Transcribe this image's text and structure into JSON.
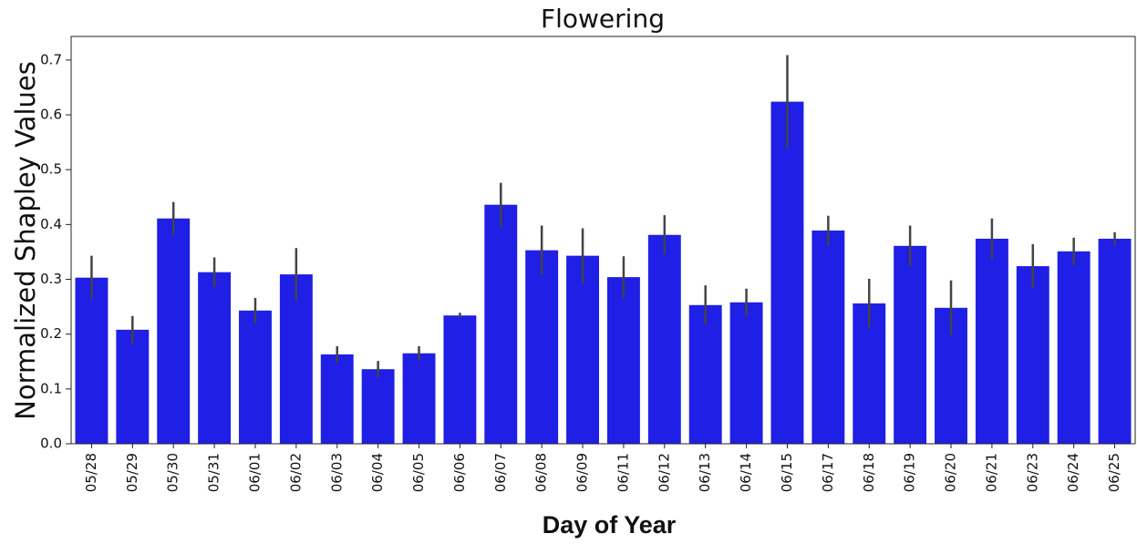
{
  "chart_data": {
    "type": "bar",
    "title": "Flowering",
    "xlabel": "Day of Year",
    "ylabel": "Normalized Shapley Values",
    "categories": [
      "05/28",
      "05/29",
      "05/30",
      "05/31",
      "06/01",
      "06/02",
      "06/03",
      "06/04",
      "06/05",
      "06/06",
      "06/07",
      "06/08",
      "06/09",
      "06/11",
      "06/12",
      "06/13",
      "06/14",
      "06/15",
      "06/17",
      "06/18",
      "06/19",
      "06/20",
      "06/21",
      "06/23",
      "06/24",
      "06/25"
    ],
    "values": [
      0.303,
      0.208,
      0.411,
      0.313,
      0.243,
      0.309,
      0.163,
      0.136,
      0.165,
      0.234,
      0.436,
      0.353,
      0.343,
      0.304,
      0.381,
      0.253,
      0.258,
      0.624,
      0.389,
      0.256,
      0.361,
      0.248,
      0.374,
      0.324,
      0.351,
      0.374
    ],
    "errors": [
      0.04,
      0.025,
      0.03,
      0.027,
      0.023,
      0.048,
      0.015,
      0.015,
      0.013,
      0.005,
      0.04,
      0.045,
      0.05,
      0.038,
      0.036,
      0.036,
      0.025,
      0.085,
      0.027,
      0.045,
      0.037,
      0.05,
      0.037,
      0.04,
      0.025,
      0.012
    ],
    "color": "#1f1fe6",
    "error_color": "#444444",
    "ylim": [
      0,
      0.743
    ],
    "yticks": [
      {
        "value": 0,
        "label": "0.0"
      },
      0.1,
      0.2,
      0.3,
      0.4,
      0.5,
      0.6,
      0.7
    ],
    "grid": false
  }
}
